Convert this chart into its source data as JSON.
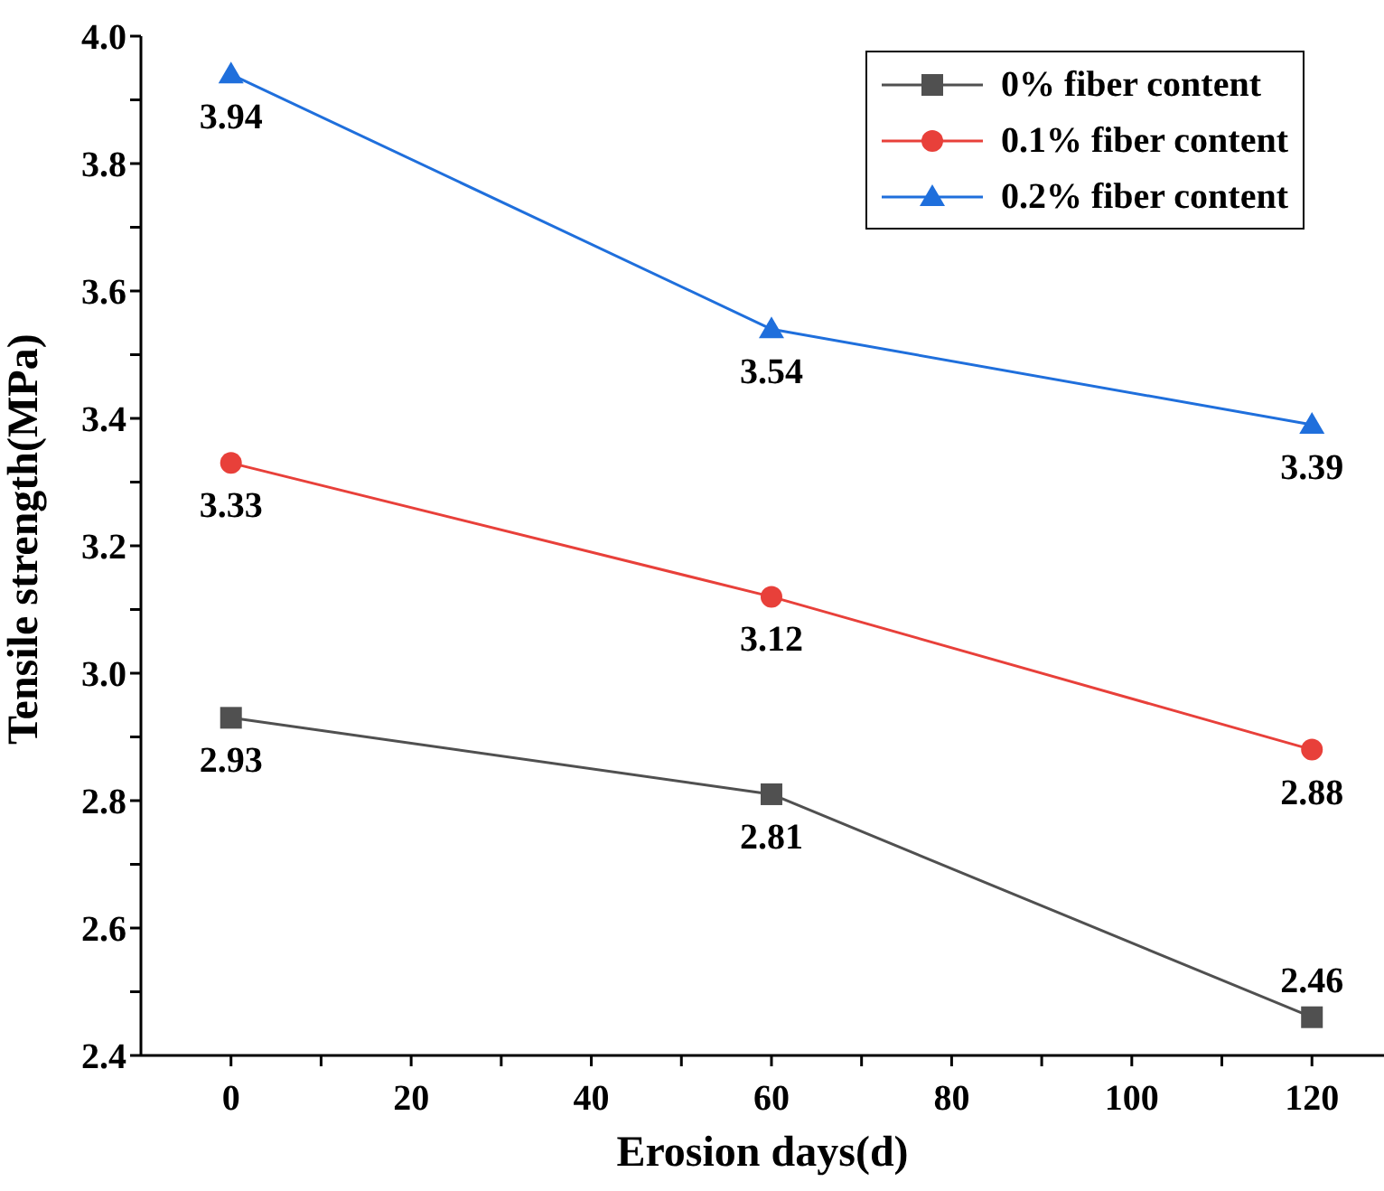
{
  "chart_data": {
    "type": "line",
    "xlabel": "Erosion days(d)",
    "ylabel": "Tensile strength(MPa)",
    "x": [
      0,
      60,
      120
    ],
    "series": [
      {
        "name": "0% fiber content",
        "color": "#505050",
        "marker": "square",
        "values": [
          2.93,
          2.81,
          2.46
        ]
      },
      {
        "name": "0.1% fiber content",
        "color": "#e8403a",
        "marker": "circle",
        "values": [
          3.33,
          3.12,
          2.88
        ]
      },
      {
        "name": "0.2% fiber content",
        "color": "#1f6fdc",
        "marker": "triangle",
        "values": [
          3.94,
          3.54,
          3.39
        ]
      }
    ],
    "xlim": [
      -10,
      128
    ],
    "xticks": [
      0,
      {
        "value": 10,
        "label": null
      },
      20,
      {
        "value": 30,
        "label": null
      },
      40,
      {
        "value": 50,
        "label": null
      },
      60,
      {
        "value": 70,
        "label": null
      },
      80,
      {
        "value": 90,
        "label": null
      },
      100,
      {
        "value": 110,
        "label": null
      },
      120
    ],
    "ylim": [
      2.4,
      4.0
    ],
    "yticks": [
      {
        "value": 2.4,
        "label": "2.4"
      },
      {
        "value": 2.5,
        "label": null
      },
      {
        "value": 2.6,
        "label": "2.6"
      },
      {
        "value": 2.7,
        "label": null
      },
      {
        "value": 2.8,
        "label": "2.8"
      },
      {
        "value": 2.9,
        "label": null
      },
      {
        "value": 3.0,
        "label": "3.0"
      },
      {
        "value": 3.1,
        "label": null
      },
      {
        "value": 3.2,
        "label": "3.2"
      },
      {
        "value": 3.3,
        "label": null
      },
      {
        "value": 3.4,
        "label": "3.4"
      },
      {
        "value": 3.5,
        "label": null
      },
      {
        "value": 3.6,
        "label": "3.6"
      },
      {
        "value": 3.7,
        "label": null
      },
      {
        "value": 3.8,
        "label": "3.8"
      },
      {
        "value": 3.9,
        "label": null
      },
      {
        "value": 4.0,
        "label": "4.0"
      }
    ],
    "grid": false,
    "legend": "top right",
    "data_labels": true,
    "line_style": "solid"
  }
}
